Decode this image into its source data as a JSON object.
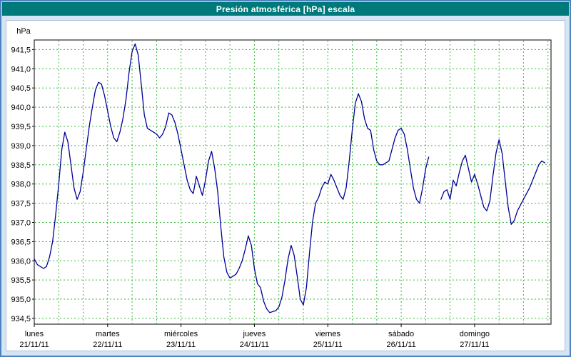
{
  "window": {
    "title": "Presión atmosférica [hPa] escala"
  },
  "colors": {
    "titlebar_bg": "#00797b",
    "titlebar_text": "#ffffff",
    "page_bg": "#d4e6f6",
    "window_border": "#4f81bd",
    "panel_bg": "#ffffff",
    "grid": "#3cb83c",
    "axis": "#000000",
    "line": "#000099",
    "label_text": "#000000"
  },
  "chart_data": {
    "type": "line",
    "title": "Presión atmosférica [hPa] escala",
    "ylabel": "hPa",
    "xlabel": "",
    "decimal_separator": ",",
    "grid": "dashed-green",
    "legend": "none",
    "ylim": [
      934.35,
      941.75
    ],
    "y_ticks": [
      934.5,
      935.0,
      935.5,
      936.0,
      936.5,
      937.0,
      937.5,
      938.0,
      938.5,
      939.0,
      939.5,
      940.0,
      940.5,
      941.0,
      941.5
    ],
    "x_hours_span": 169,
    "grid_hours_step": 8,
    "x_days": [
      {
        "label": "lunes",
        "date": "21/11/11",
        "t": 0
      },
      {
        "label": "martes",
        "date": "22/11/11",
        "t": 24
      },
      {
        "label": "miércoles",
        "date": "23/11/11",
        "t": 48
      },
      {
        "label": "jueves",
        "date": "24/11/11",
        "t": 72
      },
      {
        "label": "viernes",
        "date": "25/11/11",
        "t": 96
      },
      {
        "label": "sábado",
        "date": "26/11/11",
        "t": 120
      },
      {
        "label": "domingo",
        "date": "27/11/11",
        "t": 144
      }
    ],
    "series": [
      {
        "name": "Presión atmosférica",
        "points": [
          [
            0,
            936.05
          ],
          [
            1,
            935.9
          ],
          [
            3,
            935.8
          ],
          [
            4,
            935.85
          ],
          [
            5,
            936.1
          ],
          [
            6,
            936.5
          ],
          [
            7,
            937.2
          ],
          [
            8,
            938.0
          ],
          [
            9,
            938.9
          ],
          [
            10,
            939.35
          ],
          [
            11,
            939.1
          ],
          [
            12,
            938.5
          ],
          [
            13,
            937.9
          ],
          [
            14,
            937.6
          ],
          [
            15,
            937.8
          ],
          [
            16,
            938.3
          ],
          [
            17,
            938.9
          ],
          [
            18,
            939.5
          ],
          [
            19,
            940.0
          ],
          [
            20,
            940.45
          ],
          [
            21,
            940.65
          ],
          [
            22,
            940.6
          ],
          [
            23,
            940.3
          ],
          [
            24,
            939.9
          ],
          [
            25,
            939.5
          ],
          [
            26,
            939.2
          ],
          [
            27,
            939.1
          ],
          [
            28,
            939.35
          ],
          [
            29,
            939.7
          ],
          [
            30,
            940.2
          ],
          [
            31,
            940.9
          ],
          [
            32,
            941.45
          ],
          [
            33,
            941.65
          ],
          [
            34,
            941.35
          ],
          [
            35,
            940.6
          ],
          [
            36,
            939.8
          ],
          [
            37,
            939.45
          ],
          [
            38,
            939.4
          ],
          [
            39,
            939.35
          ],
          [
            40,
            939.3
          ],
          [
            41,
            939.2
          ],
          [
            42,
            939.3
          ],
          [
            43,
            939.5
          ],
          [
            44,
            939.85
          ],
          [
            45,
            939.8
          ],
          [
            46,
            939.6
          ],
          [
            47,
            939.3
          ],
          [
            48,
            938.9
          ],
          [
            49,
            938.5
          ],
          [
            50,
            938.1
          ],
          [
            51,
            937.85
          ],
          [
            52,
            937.75
          ],
          [
            53,
            938.2
          ],
          [
            54,
            937.95
          ],
          [
            55,
            937.7
          ],
          [
            56,
            938.1
          ],
          [
            57,
            938.6
          ],
          [
            58,
            938.85
          ],
          [
            59,
            938.4
          ],
          [
            60,
            937.8
          ],
          [
            61,
            936.9
          ],
          [
            62,
            936.1
          ],
          [
            63,
            935.7
          ],
          [
            64,
            935.55
          ],
          [
            65,
            935.6
          ],
          [
            66,
            935.65
          ],
          [
            67,
            935.8
          ],
          [
            68,
            936.0
          ],
          [
            69,
            936.3
          ],
          [
            70,
            936.65
          ],
          [
            71,
            936.4
          ],
          [
            72,
            935.8
          ],
          [
            73,
            935.4
          ],
          [
            74,
            935.3
          ],
          [
            75,
            934.95
          ],
          [
            76,
            934.75
          ],
          [
            77,
            934.65
          ],
          [
            78,
            934.68
          ],
          [
            79,
            934.7
          ],
          [
            80,
            934.8
          ],
          [
            81,
            935.05
          ],
          [
            82,
            935.5
          ],
          [
            83,
            936.05
          ],
          [
            84,
            936.4
          ],
          [
            85,
            936.15
          ],
          [
            86,
            935.6
          ],
          [
            87,
            935.0
          ],
          [
            88,
            934.85
          ],
          [
            89,
            935.3
          ],
          [
            90,
            936.2
          ],
          [
            91,
            937.0
          ],
          [
            92,
            937.5
          ],
          [
            93,
            937.65
          ],
          [
            94,
            937.9
          ],
          [
            95,
            938.05
          ],
          [
            96,
            938.0
          ],
          [
            97,
            938.25
          ],
          [
            98,
            938.1
          ],
          [
            99,
            937.9
          ],
          [
            100,
            937.7
          ],
          [
            101,
            937.6
          ],
          [
            102,
            937.9
          ],
          [
            103,
            938.6
          ],
          [
            104,
            939.4
          ],
          [
            105,
            940.1
          ],
          [
            106,
            940.35
          ],
          [
            107,
            940.15
          ],
          [
            108,
            939.7
          ],
          [
            109,
            939.45
          ],
          [
            110,
            939.4
          ],
          [
            111,
            938.9
          ],
          [
            112,
            938.6
          ],
          [
            113,
            938.5
          ],
          [
            114,
            938.5
          ],
          [
            115,
            938.55
          ],
          [
            116,
            938.6
          ],
          [
            117,
            938.9
          ],
          [
            118,
            939.2
          ],
          [
            119,
            939.4
          ],
          [
            120,
            939.45
          ],
          [
            121,
            939.3
          ],
          [
            122,
            938.9
          ],
          [
            123,
            938.4
          ],
          [
            124,
            937.9
          ],
          [
            125,
            937.6
          ],
          [
            126,
            937.5
          ],
          [
            127,
            937.9
          ],
          [
            128,
            938.4
          ],
          [
            129,
            938.7
          ],
          [
            130,
            null
          ],
          [
            133,
            937.6
          ],
          [
            134,
            937.8
          ],
          [
            135,
            937.85
          ],
          [
            136,
            937.6
          ],
          [
            137,
            938.1
          ],
          [
            138,
            937.95
          ],
          [
            139,
            938.3
          ],
          [
            140,
            938.6
          ],
          [
            141,
            938.75
          ],
          [
            142,
            938.4
          ],
          [
            143,
            938.05
          ],
          [
            144,
            938.25
          ],
          [
            145,
            938.0
          ],
          [
            146,
            937.7
          ],
          [
            147,
            937.4
          ],
          [
            148,
            937.3
          ],
          [
            149,
            937.55
          ],
          [
            150,
            938.2
          ],
          [
            151,
            938.8
          ],
          [
            152,
            939.15
          ],
          [
            153,
            938.8
          ],
          [
            154,
            938.1
          ],
          [
            155,
            937.4
          ],
          [
            156,
            936.95
          ],
          [
            157,
            937.05
          ],
          [
            158,
            937.3
          ],
          [
            159,
            937.45
          ],
          [
            160,
            937.6
          ],
          [
            161,
            937.75
          ],
          [
            162,
            937.9
          ],
          [
            163,
            938.1
          ],
          [
            164,
            938.3
          ],
          [
            165,
            938.5
          ],
          [
            166,
            938.6
          ],
          [
            167,
            938.55
          ]
        ]
      }
    ]
  }
}
